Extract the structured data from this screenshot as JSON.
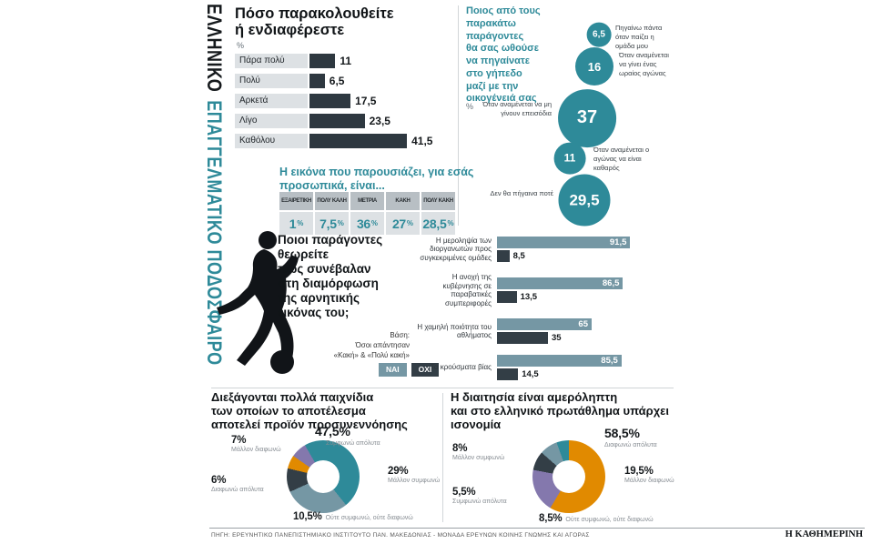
{
  "misc": {
    "percent": "%"
  },
  "colors": {
    "teal": "#2e8a99",
    "steel": "#7597a4",
    "dark": "#333e46",
    "orange": "#e18a00",
    "purple": "#8478ad",
    "bar_dark": "#2e3840",
    "band_gray": "#dde1e4",
    "header_gray": "#b8bfc4"
  },
  "vertical_title": {
    "part1": "ΕΛΛΗΝΙΚΟ",
    "part2": "ΕΠΑΓΓΕΛΜΑΤΙΚΟ ΠΟΔΟΣΦΑΙΡΟ"
  },
  "footer": {
    "source": "ΠΗΓΗ: ΕΡΕΥΝΗΤΙΚΟ ΠΑΝΕΠΙΣΤΗΜΙΑΚΟ ΙΝΣΤΙΤΟΥΤΟ ΠΑΝ. ΜΑΚΕΔΟΝΙΑΣ - ΜΟΝΑΔΑ ΕΡΕΥΝΩΝ ΚΟΙΝΗΣ ΓΝΩΜΗΣ ΚΑΙ ΑΓΟΡΑΣ",
    "brand": "Η ΚΑΘΗΜΕΡΙΝΗ"
  },
  "chart_data": [
    {
      "id": "interest",
      "type": "bar",
      "title": "Πόσο παρακολουθείτε\nή ενδιαφέρεστε",
      "unit": "%",
      "xlim": [
        0,
        45
      ],
      "rows": [
        {
          "category": "Πάρα πολύ",
          "display": "11",
          "value": 11
        },
        {
          "category": "Πολύ",
          "display": "6,5",
          "value": 6.5
        },
        {
          "category": "Αρκετά",
          "display": "17,5",
          "value": 17.5
        },
        {
          "category": "Λίγο",
          "display": "23,5",
          "value": 23.5
        },
        {
          "category": "Καθόλου",
          "display": "41,5",
          "value": 41.5
        }
      ]
    },
    {
      "id": "stadium_with_family",
      "type": "bubble",
      "title": "Ποιος από τους παρακάτω\nπαράγοντες\nθα σας ωθούσε\nνα πηγαίνατε\nστο γήπεδο\nμαζί με την\nοικογένειά σας",
      "unit": "%",
      "points": [
        {
          "display": "6,5",
          "value": 6.5,
          "label": "Πηγαίνω πάντα όταν παίζει η ομάδα μου"
        },
        {
          "display": "16",
          "value": 16,
          "label": "Όταν αναμένεται να γίνει ένας ωραίος αγώνας"
        },
        {
          "display": "37",
          "value": 37,
          "label": "Όταν αναμένεται να μη γίνουν επεισόδια"
        },
        {
          "display": "11",
          "value": 11,
          "label": "Όταν αναμένεται ο αγώνας να είναι καθαρός"
        },
        {
          "display": "29,5",
          "value": 29.5,
          "label": "Δεν θα πήγαινα ποτέ"
        }
      ]
    },
    {
      "id": "image_rating",
      "type": "table",
      "title": "Η εικόνα που παρουσιάζει, για εσάς\nπροσωπικά, είναι...",
      "unit": "%",
      "columns": [
        {
          "header": "ΕΞΑΙΡΕΤΙΚΗ",
          "display": "1",
          "value": 1
        },
        {
          "header": "ΠΟΛΥ ΚΑΛΗ",
          "display": "7,5",
          "value": 7.5
        },
        {
          "header": "ΜΕΤΡΙΑ",
          "display": "36",
          "value": 36
        },
        {
          "header": "ΚΑΚΗ",
          "display": "27",
          "value": 27
        },
        {
          "header": "ΠΟΛΥ ΚΑΚΗ",
          "display": "28,5",
          "value": 28.5
        }
      ]
    },
    {
      "id": "negative_image_factors",
      "type": "bar",
      "title": "Ποιοι παράγοντες\nθεωρείτε\nπως συνέβαλαν\nστη διαμόρφωση\nτης αρνητικής\nεικόνας του;",
      "base_note": "Βάση:\nΌσοι απάντησαν\n«Κακή» & «Πολύ κακή»",
      "xlim": [
        0,
        100
      ],
      "legend": [
        {
          "label": "ΝΑΙ",
          "color": "#7597a4"
        },
        {
          "label": "ΟΧΙ",
          "color": "#333e46"
        }
      ],
      "rows": [
        {
          "category": "Η μεροληψία των διοργανωτών προς συγκεκριμένες ομάδες",
          "yes_display": "91,5",
          "yes": 91.5,
          "no_display": "8,5",
          "no": 8.5
        },
        {
          "category": "Η ανοχή της κυβέρνησης σε παραβατικές συμπεριφορές",
          "yes_display": "86,5",
          "yes": 86.5,
          "no_display": "13,5",
          "no": 13.5
        },
        {
          "category": "Η χαμηλή ποιότητα του αθλήματος",
          "yes_display": "65",
          "yes": 65,
          "no_display": "35",
          "no": 35
        },
        {
          "category": "Τα κρούσματα βίας",
          "yes_display": "85,5",
          "yes": 85.5,
          "no_display": "14,5",
          "no": 14.5
        }
      ]
    },
    {
      "id": "match_fixing",
      "type": "pie",
      "title": "Διεξάγονται πολλά παιχνίδια\nτων οποίων το αποτέλεσμα\nαποτελεί προϊόν προσυνεννόησης",
      "slices": [
        {
          "label": "Συμφωνώ απόλυτα",
          "display": "47,5%",
          "value": 47.5,
          "color": "#2e8a99"
        },
        {
          "label": "Μάλλον συμφωνώ",
          "display": "29%",
          "value": 29,
          "color": "#7597a4"
        },
        {
          "label": "Ούτε συμφωνώ, ούτε διαφωνώ",
          "display": "10,5%",
          "value": 10.5,
          "color": "#333e46"
        },
        {
          "label": "Διαφωνώ απόλυτα",
          "display": "6%",
          "value": 6,
          "color": "#e18a00"
        },
        {
          "label": "Μάλλον διαφωνώ",
          "display": "7%",
          "value": 7,
          "color": "#8478ad"
        }
      ]
    },
    {
      "id": "refereeing_fair",
      "type": "pie",
      "title": "Η διαιτησία είναι αμερόληπτη\nκαι στο ελληνικό πρωτάθλημα υπάρχει ισονομία",
      "slices": [
        {
          "label": "Διαφωνώ απόλυτα",
          "display": "58,5%",
          "value": 58.5,
          "color": "#e18a00"
        },
        {
          "label": "Μάλλον διαφωνώ",
          "display": "19,5%",
          "value": 19.5,
          "color": "#8478ad"
        },
        {
          "label": "Ούτε συμφωνώ, ούτε διαφωνώ",
          "display": "8,5%",
          "value": 8.5,
          "color": "#333e46"
        },
        {
          "label": "Μάλλον συμφωνώ",
          "display": "8%",
          "value": 8,
          "color": "#7597a4"
        },
        {
          "label": "Συμφωνώ απόλυτα",
          "display": "5,5%",
          "value": 5.5,
          "color": "#2e8a99"
        }
      ]
    }
  ]
}
